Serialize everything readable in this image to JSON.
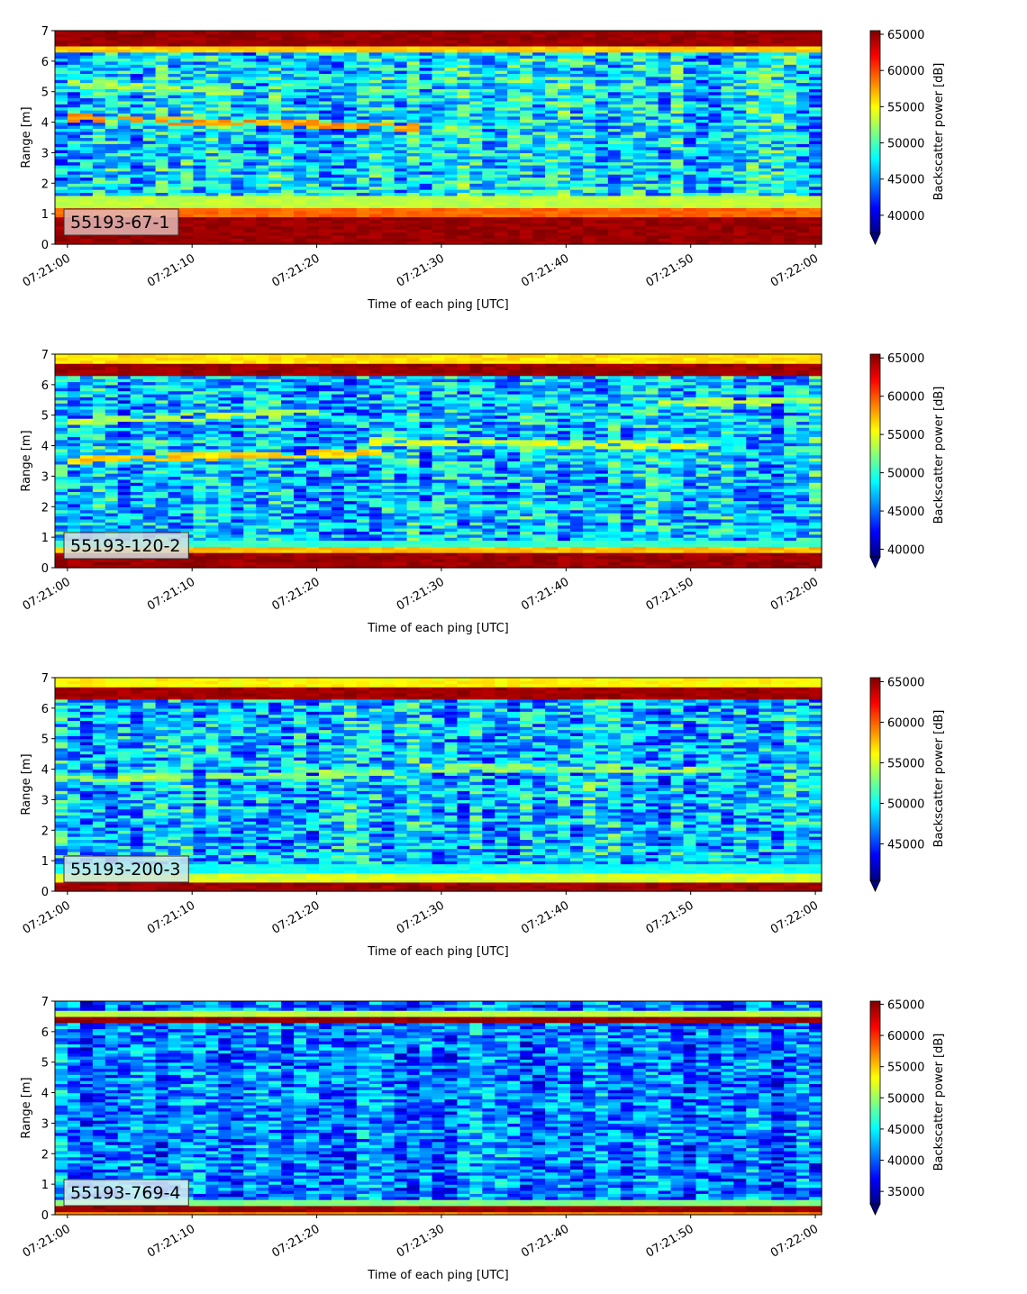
{
  "chart_data": [
    {
      "type": "heatmap",
      "label": "55193-67-1",
      "label_box_color": "#e3b8b6",
      "xlabel": "Time of each ping [UTC]",
      "ylabel": "Range [m]",
      "colorbar_label": "Backscatter power [dB]",
      "x_ticks": [
        "07:21:00",
        "07:21:10",
        "07:21:20",
        "07:21:30",
        "07:21:40",
        "07:21:50",
        "07:22:00"
      ],
      "x_range": [
        "07:20:59",
        "07:22:00.5"
      ],
      "y_ticks": [
        0,
        1,
        2,
        3,
        4,
        5,
        6,
        7
      ],
      "ylim": [
        0,
        7
      ],
      "colorbar_ticks": [
        40000,
        45000,
        50000,
        55000,
        60000,
        65000
      ],
      "clim": [
        37500,
        65500
      ],
      "colormap": "jet",
      "colorbar_extend": "min",
      "features": {
        "bands": [
          {
            "y": [
              0.0,
              0.23
            ],
            "value": 65500
          },
          {
            "y": [
              0.23,
              0.9
            ],
            "value": 65500
          },
          {
            "y": [
              0.9,
              1.2
            ],
            "value": 60000
          },
          {
            "y": [
              1.2,
              1.55
            ],
            "value": 54000
          },
          {
            "y": [
              6.5,
              7.0
            ],
            "value": 65500
          },
          {
            "y": [
              6.35,
              6.5
            ],
            "value": 57000
          }
        ],
        "layers": [
          {
            "t": [
              0,
              28
            ],
            "y": [
              4.15,
              3.85
            ],
            "value": 59000
          },
          {
            "t": [
              0,
              14
            ],
            "y": [
              5.3,
              5.0
            ],
            "value": 54000
          }
        ],
        "background_mean": 47000,
        "background_spread": 5000
      }
    },
    {
      "type": "heatmap",
      "label": "55193-120-2",
      "label_box_color": "#d8dfe0",
      "xlabel": "Time of each ping [UTC]",
      "ylabel": "Range [m]",
      "colorbar_label": "Backscatter power [dB]",
      "x_ticks": [
        "07:21:00",
        "07:21:10",
        "07:21:20",
        "07:21:30",
        "07:21:40",
        "07:21:50",
        "07:22:00"
      ],
      "x_range": [
        "07:20:59",
        "07:22:00.5"
      ],
      "y_ticks": [
        0,
        1,
        2,
        3,
        4,
        5,
        6,
        7
      ],
      "ylim": [
        0,
        7
      ],
      "colorbar_ticks": [
        40000,
        45000,
        50000,
        55000,
        60000,
        65000
      ],
      "clim": [
        39000,
        65500
      ],
      "colormap": "jet",
      "colorbar_extend": "min",
      "features": {
        "bands": [
          {
            "y": [
              0.0,
              0.15
            ],
            "value": 65500
          },
          {
            "y": [
              0.15,
              0.45
            ],
            "value": 65500
          },
          {
            "y": [
              0.45,
              0.75
            ],
            "value": 58000
          },
          {
            "y": [
              0.75,
              0.95
            ],
            "value": 51000
          },
          {
            "y": [
              6.3,
              6.75
            ],
            "value": 65500
          },
          {
            "y": [
              6.75,
              7.0
            ],
            "value": 57000
          }
        ],
        "layers": [
          {
            "t": [
              0,
              26
            ],
            "y": [
              3.55,
              3.8
            ],
            "value": 58000
          },
          {
            "t": [
              24,
              52
            ],
            "y": [
              4.15,
              4.0
            ],
            "value": 56000
          },
          {
            "t": [
              0,
              20
            ],
            "y": [
              4.8,
              5.1
            ],
            "value": 55000
          },
          {
            "t": [
              47,
              60
            ],
            "y": [
              5.4,
              5.5
            ],
            "value": 55000
          }
        ],
        "background_mean": 47500,
        "background_spread": 4500
      }
    },
    {
      "type": "heatmap",
      "label": "55193-200-3",
      "label_box_color": "#cfe6ea",
      "xlabel": "Time of each ping [UTC]",
      "ylabel": "Range [m]",
      "colorbar_label": "Backscatter power [dB]",
      "x_ticks": [
        "07:21:00",
        "07:21:10",
        "07:21:20",
        "07:21:30",
        "07:21:40",
        "07:21:50",
        "07:22:00"
      ],
      "x_range": [
        "07:20:59",
        "07:22:00.5"
      ],
      "y_ticks": [
        0,
        1,
        2,
        3,
        4,
        5,
        6,
        7
      ],
      "ylim": [
        0,
        7
      ],
      "colorbar_ticks": [
        45000,
        50000,
        55000,
        60000,
        65000
      ],
      "clim": [
        40500,
        65500
      ],
      "colormap": "jet",
      "colorbar_extend": "min",
      "features": {
        "bands": [
          {
            "y": [
              0.0,
              0.12
            ],
            "value": 65500
          },
          {
            "y": [
              0.12,
              0.35
            ],
            "value": 65500
          },
          {
            "y": [
              0.35,
              0.6
            ],
            "value": 56000
          },
          {
            "y": [
              0.6,
              0.95
            ],
            "value": 51000
          },
          {
            "y": [
              6.35,
              6.75
            ],
            "value": 65500
          },
          {
            "y": [
              6.75,
              7.0
            ],
            "value": 57000
          }
        ],
        "layers": [
          {
            "t": [
              0,
              26
            ],
            "y": [
              3.7,
              3.9
            ],
            "value": 55000
          },
          {
            "t": [
              28,
              52
            ],
            "y": [
              4.05,
              4.0
            ],
            "value": 55000
          }
        ],
        "background_mean": 48500,
        "background_spread": 4500
      }
    },
    {
      "type": "heatmap",
      "label": "55193-769-4",
      "label_box_color": "#d9eef1",
      "xlabel": "Time of each ping [UTC]",
      "ylabel": "Range [m]",
      "colorbar_label": "Backscatter power [dB]",
      "x_ticks": [
        "07:21:00",
        "07:21:10",
        "07:21:20",
        "07:21:30",
        "07:21:40",
        "07:21:50",
        "07:22:00"
      ],
      "x_range": [
        "07:20:59",
        "07:22:00.5"
      ],
      "y_ticks": [
        0,
        1,
        2,
        3,
        4,
        5,
        6,
        7
      ],
      "ylim": [
        0,
        7
      ],
      "colorbar_ticks": [
        35000,
        40000,
        45000,
        50000,
        55000,
        60000,
        65000
      ],
      "clim": [
        33000,
        65500
      ],
      "colormap": "jet",
      "colorbar_extend": "min",
      "features": {
        "bands": [
          {
            "y": [
              0.0,
              0.08
            ],
            "value": 58000
          },
          {
            "y": [
              0.08,
              0.3
            ],
            "value": 65500
          },
          {
            "y": [
              0.3,
              0.55
            ],
            "value": 50000
          },
          {
            "y": [
              6.35,
              6.55
            ],
            "value": 65500
          },
          {
            "y": [
              6.55,
              6.7
            ],
            "value": 52000
          }
        ],
        "layers": [],
        "background_mean": 41000,
        "background_spread": 5000
      }
    }
  ]
}
